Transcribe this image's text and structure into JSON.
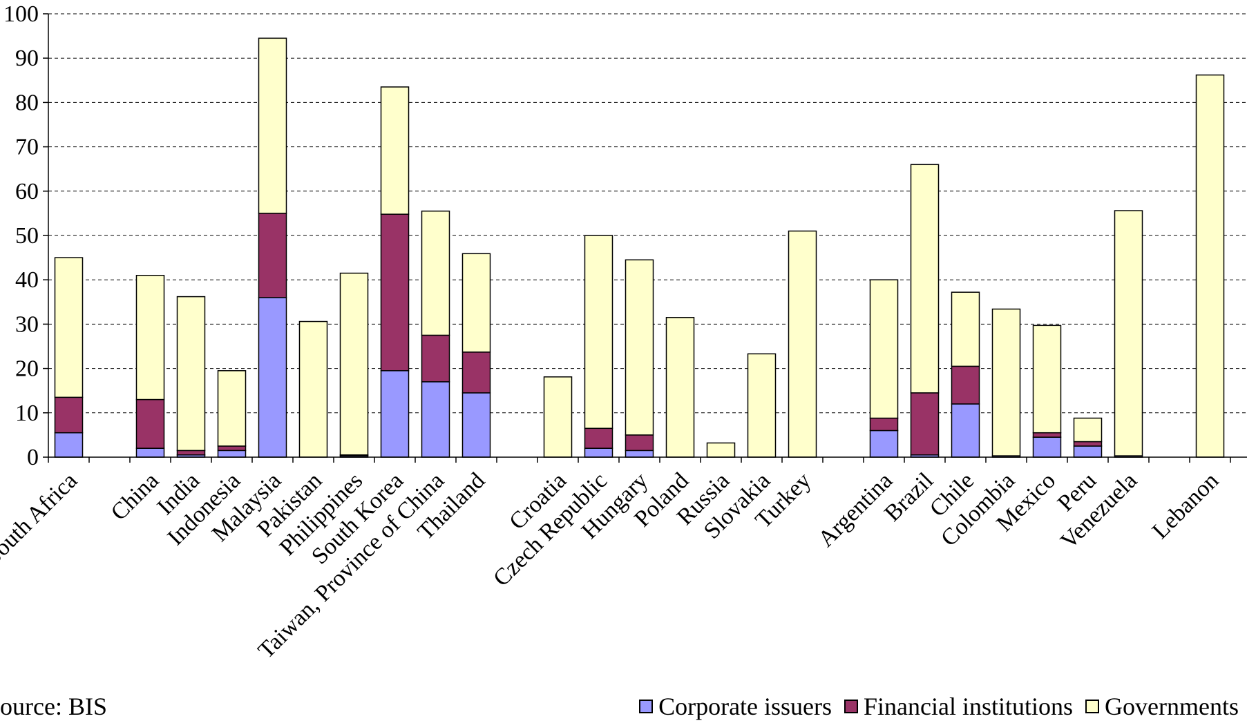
{
  "chart_data": {
    "type": "bar",
    "stacked": true,
    "ylim": [
      0,
      100
    ],
    "yticks": [
      0,
      10,
      20,
      30,
      40,
      50,
      60,
      70,
      80,
      90,
      100
    ],
    "grid": "horizontal dashed",
    "legend_position": "bottom-right",
    "categories": [
      "South Africa",
      "",
      "China",
      "India",
      "Indonesia",
      "Malaysia",
      "Pakistan",
      "Philippines",
      "South Korea",
      "Taiwan, Province of  China",
      "Thailand",
      "",
      "Croatia",
      "Czech Republic",
      "Hungary",
      "Poland",
      "Russia",
      "Slovakia",
      "Turkey",
      "",
      "Argentina",
      "Brazil",
      "Chile",
      "Colombia",
      "Mexico",
      "Peru",
      "Venezuela",
      "",
      "Lebanon"
    ],
    "series": [
      {
        "name": "Corporate issuers",
        "color": "#9999FF",
        "values": [
          5.5,
          null,
          2,
          0.5,
          1.5,
          36,
          0,
          0.3,
          19.5,
          17,
          14.5,
          null,
          0,
          2,
          1.5,
          0,
          0,
          0,
          0,
          null,
          6,
          0.5,
          12,
          0.3,
          4.5,
          2.5,
          0.3,
          null,
          0
        ]
      },
      {
        "name": "Financial institutions",
        "color": "#993366",
        "values": [
          8,
          null,
          11,
          1,
          1,
          19,
          0,
          0.2,
          35.3,
          10.5,
          9.2,
          null,
          0,
          4.5,
          3.5,
          0,
          0,
          0,
          0,
          null,
          2.8,
          14,
          8.5,
          0,
          1,
          1,
          0,
          null,
          0
        ]
      },
      {
        "name": "Governments",
        "color": "#FFFFCC",
        "values": [
          31.5,
          null,
          28,
          34.7,
          17,
          39.5,
          30.6,
          41,
          28.7,
          28,
          22.2,
          null,
          18.1,
          43.5,
          39.5,
          31.5,
          3.2,
          23.3,
          51,
          null,
          31.2,
          51.5,
          16.7,
          33.1,
          24.2,
          5.3,
          55.3,
          null,
          86.2
        ]
      }
    ]
  },
  "source": "Source: BIS",
  "legend": {
    "corporate": "Corporate issuers",
    "financial": "Financial institutions",
    "governments": "Governments"
  }
}
